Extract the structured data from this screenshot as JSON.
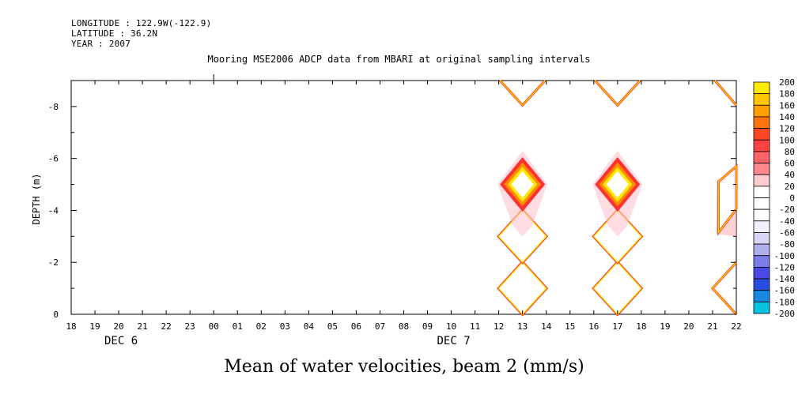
{
  "header": {
    "longitude": "LONGITUDE : 122.9W(-122.9)",
    "latitude": "LATITUDE : 36.2N",
    "year": "YEAR : 2007"
  },
  "chart_data": {
    "type": "heatmap",
    "title": "Mooring MSE2006 ADCP data from MBARI at original sampling intervals",
    "xlabel": "Mean of water velocities, beam 2 (mm/s)",
    "ylabel": "DEPTH (m)",
    "x_ticks": [
      "18",
      "19",
      "20",
      "21",
      "22",
      "23",
      "00",
      "01",
      "02",
      "03",
      "04",
      "05",
      "06",
      "07",
      "08",
      "09",
      "10",
      "11",
      "12",
      "13",
      "14",
      "15",
      "16",
      "17",
      "18",
      "19",
      "20",
      "21",
      "22"
    ],
    "date_labels": [
      {
        "label": "DEC  6",
        "at_tick": 2
      },
      {
        "label": "DEC  7",
        "at_tick": 16
      }
    ],
    "y_ticks": [
      0,
      -2,
      -4,
      -6,
      -8
    ],
    "ylim": [
      0,
      -9
    ],
    "colorbar": {
      "levels": [
        200,
        180,
        160,
        140,
        120,
        100,
        80,
        60,
        40,
        20,
        0,
        -20,
        -40,
        -60,
        -80,
        -100,
        -120,
        -140,
        -160,
        -180,
        -200
      ],
      "colors": {
        "high": "#FFFF00",
        "orange": "#FF8C00",
        "red": "#FF3030",
        "pink": "#FF9AA0",
        "white": "#FFFFFF",
        "lavender": "#C8C8F0",
        "blue": "#3030E0",
        "cyan": "#00E0E0"
      }
    },
    "features": [
      {
        "time": "13",
        "depth": -1,
        "shape": "diamond",
        "value": "low"
      },
      {
        "time": "13",
        "depth": -3,
        "shape": "diamond",
        "value": "low"
      },
      {
        "time": "13",
        "depth": -5,
        "shape": "diamond",
        "value": "high"
      },
      {
        "time": "13",
        "depth": -9,
        "shape": "v-top",
        "value": "low"
      },
      {
        "time": "17",
        "depth": -1,
        "shape": "diamond",
        "value": "low"
      },
      {
        "time": "17",
        "depth": -3,
        "shape": "diamond",
        "value": "low"
      },
      {
        "time": "17",
        "depth": -5,
        "shape": "diamond",
        "value": "high"
      },
      {
        "time": "17",
        "depth": -9,
        "shape": "v-top",
        "value": "low"
      },
      {
        "time": "22",
        "depth": -1,
        "shape": "half-diamond",
        "value": "low"
      },
      {
        "time": "22",
        "depth": -5,
        "shape": "half-column",
        "value": "high"
      },
      {
        "time": "22",
        "depth": -9,
        "shape": "half-v",
        "value": "low"
      }
    ]
  }
}
